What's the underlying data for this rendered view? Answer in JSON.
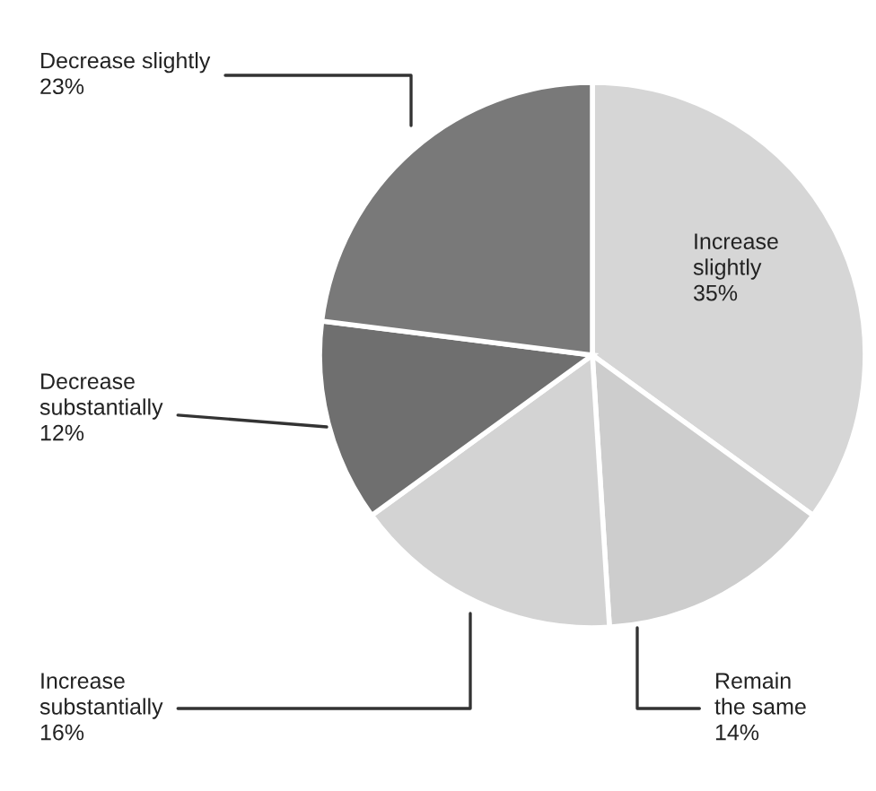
{
  "chart_data": {
    "type": "pie",
    "categories": [
      "Increase\nslightly",
      "Remain\nthe same",
      "Increase\nsubstantially",
      "Decrease\nsubstantially",
      "Decrease slightly"
    ],
    "values": [
      35,
      14,
      16,
      12,
      23
    ],
    "value_labels": [
      "35%",
      "14%",
      "16%",
      "12%",
      "23%"
    ],
    "colors": [
      "#d6d6d6",
      "#cdcdcd",
      "#d3d3d3",
      "#6f6f6f",
      "#797979"
    ]
  }
}
